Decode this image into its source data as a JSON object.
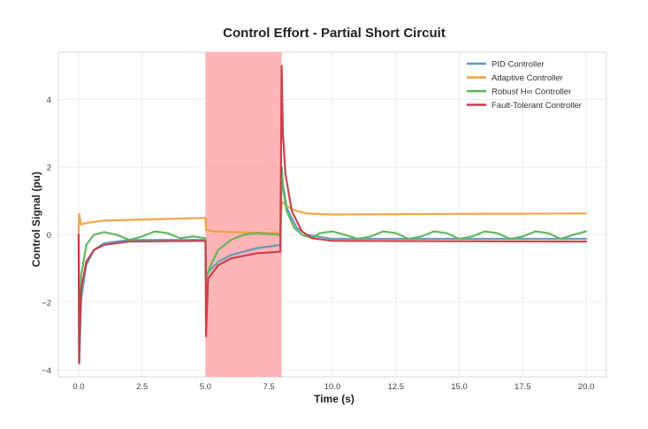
{
  "chart_data": {
    "type": "line",
    "title": "Control Effort - Partial Short Circuit",
    "xlabel": "Time (s)",
    "ylabel": "Control Signal (pu)",
    "xlim": [
      -0.8,
      20.8
    ],
    "ylim": [
      -4.2,
      5.4
    ],
    "xticks": [
      0.0,
      2.5,
      5.0,
      7.5,
      10.0,
      12.5,
      15.0,
      17.5,
      20.0
    ],
    "xtick_labels": [
      "0.0",
      "2.5",
      "5.0",
      "7.5",
      "10.0",
      "12.5",
      "15.0",
      "17.5",
      "20.0"
    ],
    "yticks": [
      -4,
      -2,
      0,
      2,
      4
    ],
    "ytick_labels": [
      "−4",
      "−2",
      "0",
      "2",
      "4"
    ],
    "grid": true,
    "legend_position": "top-right",
    "fault_region": {
      "x_start": 5.0,
      "x_end": 8.0,
      "color": "#ff9c9c"
    },
    "series": [
      {
        "name": "PID Controller",
        "color": "#5a9bbf",
        "x": [
          0.0,
          0.02,
          0.1,
          0.3,
          0.6,
          1.0,
          2.0,
          5.0,
          5.02,
          5.1,
          5.5,
          6.0,
          7.0,
          7.95,
          8.0,
          8.05,
          8.2,
          8.6,
          9.0,
          10.0,
          20.0
        ],
        "y": [
          0.0,
          -3.8,
          -1.9,
          -0.9,
          -0.45,
          -0.25,
          -0.15,
          -0.15,
          -1.3,
          -1.1,
          -0.8,
          -0.6,
          -0.4,
          -0.3,
          2.0,
          1.5,
          0.8,
          0.2,
          0.0,
          -0.12,
          -0.12
        ]
      },
      {
        "name": "Adaptive Controller",
        "color": "#f0a142",
        "x": [
          0.0,
          0.02,
          0.1,
          0.3,
          1.0,
          3.0,
          5.0,
          5.02,
          5.3,
          6.0,
          7.0,
          7.95,
          8.0,
          8.05,
          8.2,
          8.6,
          9.0,
          10.0,
          15.0,
          20.0
        ],
        "y": [
          0.0,
          0.62,
          0.3,
          0.35,
          0.42,
          0.46,
          0.5,
          0.15,
          0.1,
          0.08,
          0.06,
          0.05,
          1.0,
          0.95,
          0.85,
          0.7,
          0.63,
          0.6,
          0.62,
          0.63
        ]
      },
      {
        "name": "Robust H∞ Controller",
        "color": "#5db55a",
        "x": [
          0.0,
          0.02,
          0.1,
          0.3,
          0.6,
          1.0,
          1.5,
          2.0,
          2.5,
          3.0,
          3.5,
          4.0,
          4.5,
          5.0,
          5.02,
          5.2,
          5.5,
          6.0,
          6.5,
          7.0,
          7.5,
          7.95,
          8.0,
          8.05,
          8.2,
          8.5,
          8.8,
          9.2,
          9.5,
          10.0,
          10.5,
          11.0,
          11.5,
          12.0,
          12.5,
          13.0,
          13.5,
          14.0,
          14.5,
          15.0,
          15.5,
          16.0,
          16.5,
          17.0,
          17.5,
          18.0,
          18.5,
          19.0,
          19.5,
          20.0
        ],
        "y": [
          0.0,
          -3.5,
          -1.2,
          -0.3,
          0.0,
          0.08,
          0.0,
          -0.15,
          -0.05,
          0.1,
          0.05,
          -0.1,
          -0.05,
          -0.1,
          -1.3,
          -0.9,
          -0.45,
          -0.15,
          0.0,
          0.05,
          0.02,
          0.0,
          2.0,
          1.4,
          0.7,
          0.2,
          0.0,
          -0.1,
          0.05,
          0.1,
          0.0,
          -0.12,
          -0.05,
          0.1,
          0.05,
          -0.12,
          -0.05,
          0.1,
          0.05,
          -0.12,
          -0.05,
          0.1,
          0.05,
          -0.12,
          -0.05,
          0.1,
          0.05,
          -0.12,
          0.0,
          0.1
        ]
      },
      {
        "name": "Fault-Tolerant Controller",
        "color": "#c83a46",
        "x": [
          0.0,
          0.02,
          0.05,
          0.1,
          0.3,
          0.6,
          1.0,
          2.0,
          5.0,
          5.02,
          5.1,
          5.5,
          6.0,
          7.0,
          7.95,
          8.0,
          8.05,
          8.15,
          8.4,
          8.8,
          9.2,
          10.0,
          20.0
        ],
        "y": [
          0.0,
          -3.8,
          -2.8,
          -1.6,
          -0.8,
          -0.45,
          -0.3,
          -0.2,
          -0.18,
          -3.0,
          -1.3,
          -0.9,
          -0.7,
          -0.55,
          -0.5,
          5.0,
          3.0,
          1.8,
          0.7,
          0.1,
          -0.1,
          -0.18,
          -0.2
        ]
      }
    ]
  }
}
